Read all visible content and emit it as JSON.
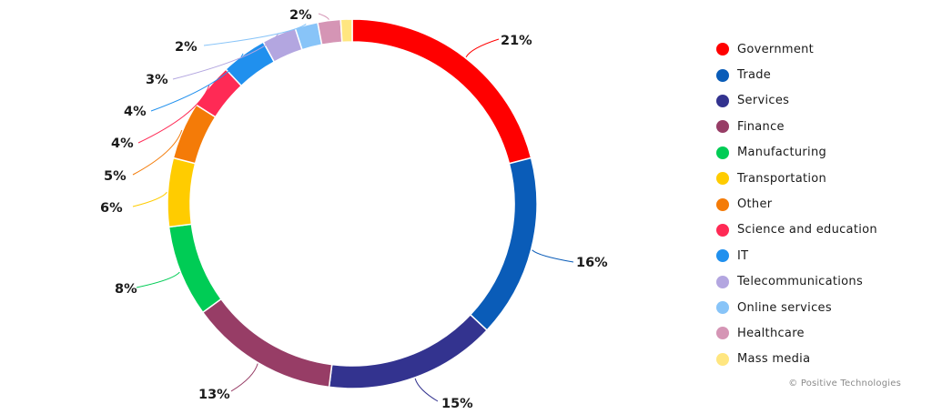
{
  "chart_data": {
    "type": "pie",
    "donut": true,
    "legend_position": "right",
    "series": [
      {
        "name": "Government",
        "value": 21,
        "label": "21%",
        "color": "#ff0000"
      },
      {
        "name": "Trade",
        "value": 16,
        "label": "16%",
        "color": "#0a5cb8"
      },
      {
        "name": "Services",
        "value": 15,
        "label": "15%",
        "color": "#33338f"
      },
      {
        "name": "Finance",
        "value": 13,
        "label": "13%",
        "color": "#973d66"
      },
      {
        "name": "Manufacturing",
        "value": 8,
        "label": "8%",
        "color": "#00cc55"
      },
      {
        "name": "Transportation",
        "value": 6,
        "label": "6%",
        "color": "#ffcc00"
      },
      {
        "name": "Other",
        "value": 5,
        "label": "5%",
        "color": "#f47b08"
      },
      {
        "name": "Science and education",
        "value": 4,
        "label": "4%",
        "color": "#ff2a55"
      },
      {
        "name": "IT",
        "value": 4,
        "label": "4%",
        "color": "#2090ee"
      },
      {
        "name": "Telecommunications",
        "value": 3,
        "label": "3%",
        "color": "#b3a6e0"
      },
      {
        "name": "Online services",
        "value": 2,
        "label": "2%",
        "color": "#88c4f8"
      },
      {
        "name": "Healthcare",
        "value": 2,
        "label": "2%",
        "color": "#d595b5"
      },
      {
        "name": "Mass media",
        "value": 1,
        "label": "",
        "color": "#ffe680"
      }
    ]
  },
  "credit": "© Positive Technologies"
}
